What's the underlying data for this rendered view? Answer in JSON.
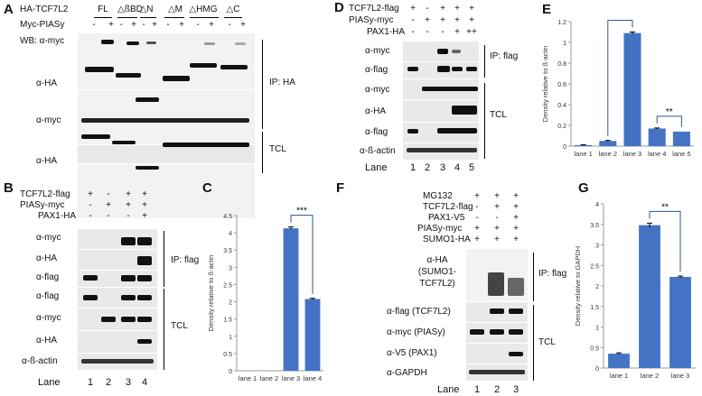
{
  "panels": {
    "A": "A",
    "B": "B",
    "C": "C",
    "D": "D",
    "E": "E",
    "F": "F",
    "G": "G"
  },
  "panel_a": {
    "row_labels": [
      "HA-TCF7L2",
      "Myc-PIASy"
    ],
    "constructs": [
      "FL",
      "△ßBD",
      "△N",
      "△M",
      "△HMG",
      "△C"
    ],
    "myc_signs": [
      "-",
      "+",
      "-",
      "+",
      "-",
      "+",
      "-",
      "+",
      "-",
      "+",
      "-",
      "+"
    ],
    "blot_labels": [
      "WB: α-myc",
      "α-HA",
      "α-myc",
      "α-HA"
    ],
    "group_labels": [
      "IP: HA",
      "TCL"
    ]
  },
  "panel_b": {
    "row_labels": [
      "TCF7L2-flag",
      "PIASy-myc",
      "PAX1-HA"
    ],
    "signs": [
      [
        "+",
        "-",
        "+",
        "+"
      ],
      [
        "-",
        "+",
        "+",
        "+"
      ],
      [
        "-",
        "-",
        "-",
        "+"
      ]
    ],
    "blot_labels": [
      "α-myc",
      "α-HA",
      "α-flag",
      "α-flag",
      "α-myc",
      "α-HA",
      "α-ß-actin"
    ],
    "group_labels": [
      "IP: flag",
      "TCL"
    ],
    "lane_label": "Lane",
    "lanes": [
      "1",
      "2",
      "3",
      "4"
    ]
  },
  "panel_d": {
    "row_labels": [
      "TCF7L2-flag",
      "PIASy-myc",
      "PAX1-HA"
    ],
    "signs": [
      [
        "+",
        "-",
        "+",
        "+",
        "+"
      ],
      [
        "-",
        "+",
        "+",
        "+",
        "+"
      ],
      [
        "-",
        "-",
        "-",
        "+",
        "++"
      ]
    ],
    "blot_labels": [
      "α-myc",
      "α-flag",
      "α-myc",
      "α-HA",
      "α-flag",
      "α-ß-actin"
    ],
    "group_labels": [
      "IP: flag",
      "TCL"
    ],
    "lane_label": "Lane",
    "lanes": [
      "1",
      "2",
      "3",
      "4",
      "5"
    ]
  },
  "panel_f": {
    "row_labels": [
      "MG132",
      "TCF7L2-flag",
      "PAX1-V5",
      "PIASy-myc",
      "SUMO1-HA"
    ],
    "signs": [
      [
        "+",
        "+",
        "+"
      ],
      [
        "-",
        "+",
        "+"
      ],
      [
        "-",
        "-",
        "+"
      ],
      [
        "+",
        "+",
        "+"
      ],
      [
        "+",
        "+",
        "+"
      ]
    ],
    "blot_labels": [
      "α-HA",
      "(SUMO1-",
      "TCF7L2)",
      "α-flag (TCF7L2)",
      "α-myc (PIASy)",
      "α-V5 (PAX1)",
      "α-GAPDH"
    ],
    "group_labels": [
      "IP: flag",
      "TCL"
    ],
    "lane_label": "Lane",
    "lanes": [
      "1",
      "2",
      "3"
    ]
  },
  "chart_data": [
    {
      "panel": "C",
      "type": "bar",
      "categories": [
        "lane 1",
        "lane 2",
        "lane 3",
        "lane 4"
      ],
      "values": [
        0,
        0,
        4.13,
        2.08
      ],
      "errors": [
        0,
        0,
        0.04,
        0.02
      ],
      "ylabel": "Density relative to ß-actin",
      "ylim": [
        0,
        4.5
      ],
      "yticks": [
        "0",
        "0.5",
        "1",
        "1.5",
        "2",
        "2.5",
        "3",
        "3.5",
        "4",
        "4.5"
      ],
      "bar_color": "#4472c4",
      "significance": [
        {
          "between": [
            "lane 3",
            "lane 4"
          ],
          "label": "***"
        }
      ]
    },
    {
      "panel": "E",
      "type": "bar",
      "categories": [
        "lane 1",
        "lane 2",
        "lane 3",
        "lane 4",
        "lane 5"
      ],
      "values": [
        0.01,
        0.05,
        1.09,
        0.17,
        0.14
      ],
      "errors": [
        0.003,
        0.005,
        0.01,
        0.005,
        0
      ],
      "ylabel": "Density relative to ß-actin",
      "ylim": [
        0,
        1.2
      ],
      "yticks": [
        "0",
        "0.2",
        "0.4",
        "0.6",
        "0.8",
        "1",
        "1.2"
      ],
      "bar_color": "#4472c4",
      "significance": [
        {
          "between": [
            "lane 2",
            "lane 3"
          ],
          "label": "***"
        },
        {
          "between": [
            "lane 4",
            "lane 5"
          ],
          "label": "**"
        }
      ]
    },
    {
      "panel": "G",
      "type": "bar",
      "categories": [
        "lane 1",
        "lane 2",
        "lane 3"
      ],
      "values": [
        0.35,
        3.48,
        2.22
      ],
      "errors": [
        0.02,
        0.05,
        0.02
      ],
      "ylabel": "Density relative to GAPDH",
      "ylim": [
        0,
        4
      ],
      "yticks": [
        "0",
        "0.5",
        "1",
        "1.5",
        "2",
        "2.5",
        "3",
        "3.5",
        "4"
      ],
      "bar_color": "#4472c4",
      "significance": [
        {
          "between": [
            "lane 2",
            "lane 3"
          ],
          "label": "**"
        }
      ]
    }
  ]
}
